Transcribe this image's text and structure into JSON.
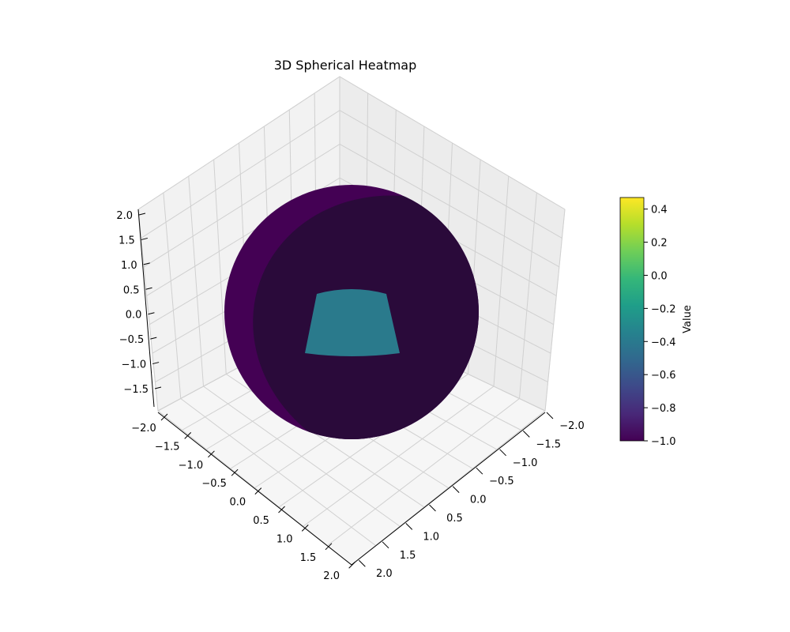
{
  "chart_data": {
    "type": "heatmap",
    "subtype": "3d-surface-sphere",
    "title": "3D Spherical Heatmap",
    "view": {
      "elevation_deg": 30,
      "azimuth_deg": 45
    },
    "x_ticks": [
      "−2.0",
      "−1.5",
      "−1.0",
      "−0.5",
      "0.0",
      "0.5",
      "1.0",
      "1.5",
      "2.0"
    ],
    "y_ticks": [
      "−2.0",
      "−1.5",
      "−1.0",
      "−0.5",
      "0.0",
      "0.5",
      "1.0",
      "1.5",
      "2.0"
    ],
    "z_ticks": [
      "−1.5",
      "−1.0",
      "−0.5",
      "0.0",
      "0.5",
      "1.0",
      "1.5",
      "2.0"
    ],
    "xlim": [
      -2.2,
      2.2
    ],
    "ylim": [
      -2.2,
      2.2
    ],
    "zlim": [
      -1.8,
      2.1
    ],
    "sphere": {
      "radius": 1.0,
      "base_value": -1.0,
      "base_color": "#440154",
      "shadow_color": "#2a0a3a"
    },
    "highlight_patch": {
      "value": -0.4,
      "color": "#2a7a8c"
    },
    "grid": true,
    "colorbar": {
      "label": "Value",
      "min": -1.0,
      "max": 0.47,
      "ticks": [
        "0.4",
        "0.2",
        "0.0",
        "−0.2",
        "−0.4",
        "−0.6",
        "−0.8",
        "−1.0"
      ],
      "tick_values": [
        0.4,
        0.2,
        0.0,
        -0.2,
        -0.4,
        -0.6,
        -0.8,
        -1.0
      ],
      "colormap": "viridis",
      "colormap_stops": [
        "#440154",
        "#482878",
        "#3e4989",
        "#31688e",
        "#26828e",
        "#1f9e89",
        "#35b779",
        "#6ece58",
        "#b5de2b",
        "#fde725"
      ]
    }
  }
}
